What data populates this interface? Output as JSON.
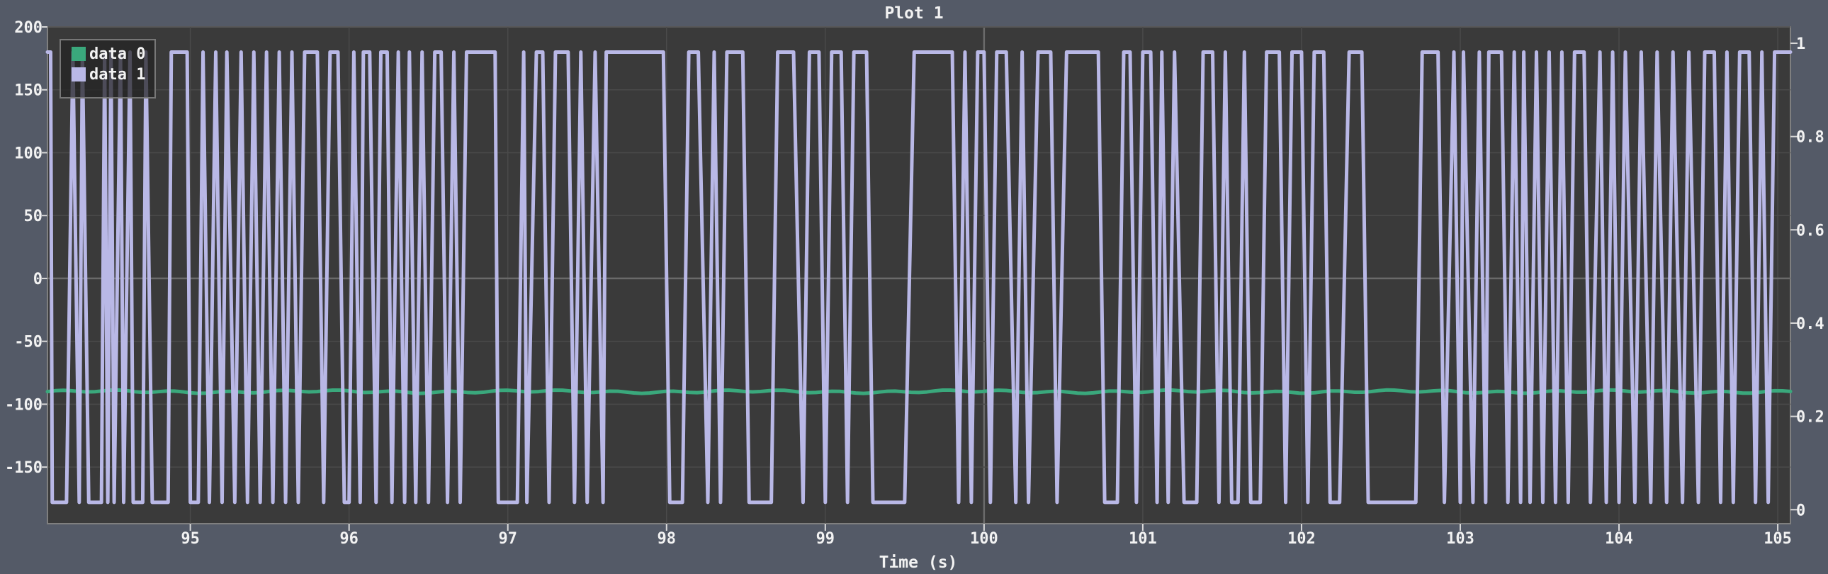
{
  "chart_data": {
    "type": "line",
    "title": "Plot 1",
    "xlabel": "Time (s)",
    "ylabel": "",
    "xlim": [
      94.1,
      105.08
    ],
    "ylim": [
      -195,
      200
    ],
    "y2lim": [
      -0.03,
      1.035
    ],
    "x_ticks": [
      "95",
      "96",
      "97",
      "98",
      "99",
      "100",
      "101",
      "102",
      "103",
      "104",
      "105"
    ],
    "y_ticks": [
      "200",
      "150",
      "100",
      "50",
      "0",
      "-50",
      "-100",
      "-150"
    ],
    "y2_ticks": [
      "1",
      "0.8",
      "0.6",
      "0.4",
      "0.2",
      "0"
    ],
    "grid": true,
    "legend_position": "top-left",
    "series": [
      {
        "name": "data 0",
        "color": "#3aa87c",
        "axis": "left",
        "values": "constant approximately -90 across the full range"
      },
      {
        "name": "data 1",
        "color": "#b9b8e6",
        "axis": "left",
        "segments": [
          [
            94.1,
            180
          ],
          [
            94.12,
            180
          ],
          [
            94.13,
            -178
          ],
          [
            94.22,
            -178
          ],
          [
            94.26,
            180
          ],
          [
            94.3,
            -178
          ],
          [
            94.32,
            180
          ],
          [
            94.36,
            -178
          ],
          [
            94.44,
            -178
          ],
          [
            94.46,
            180
          ],
          [
            94.48,
            -178
          ],
          [
            94.5,
            180
          ],
          [
            94.52,
            -178
          ],
          [
            94.56,
            180
          ],
          [
            94.58,
            -178
          ],
          [
            94.62,
            180
          ],
          [
            94.64,
            -178
          ],
          [
            94.7,
            -178
          ],
          [
            94.72,
            180
          ],
          [
            94.76,
            -178
          ],
          [
            94.86,
            -178
          ],
          [
            94.88,
            180
          ],
          [
            94.98,
            180
          ],
          [
            95.0,
            -178
          ],
          [
            95.05,
            -178
          ],
          [
            95.08,
            180
          ],
          [
            95.12,
            -178
          ],
          [
            95.16,
            180
          ],
          [
            95.2,
            -178
          ],
          [
            95.23,
            180
          ],
          [
            95.28,
            -178
          ],
          [
            95.32,
            180
          ],
          [
            95.36,
            -178
          ],
          [
            95.4,
            180
          ],
          [
            95.44,
            -178
          ],
          [
            95.48,
            180
          ],
          [
            95.52,
            -178
          ],
          [
            95.56,
            180
          ],
          [
            95.6,
            -178
          ],
          [
            95.64,
            180
          ],
          [
            95.68,
            -178
          ],
          [
            95.72,
            180
          ],
          [
            95.8,
            180
          ],
          [
            95.84,
            -178
          ],
          [
            95.88,
            180
          ],
          [
            95.93,
            180
          ],
          [
            95.97,
            -178
          ],
          [
            96.0,
            -178
          ],
          [
            96.03,
            180
          ],
          [
            96.07,
            -178
          ],
          [
            96.09,
            180
          ],
          [
            96.13,
            180
          ],
          [
            96.17,
            -178
          ],
          [
            96.2,
            180
          ],
          [
            96.24,
            180
          ],
          [
            96.27,
            -178
          ],
          [
            96.31,
            180
          ],
          [
            96.35,
            -178
          ],
          [
            96.38,
            180
          ],
          [
            96.42,
            -178
          ],
          [
            96.46,
            180
          ],
          [
            96.5,
            -178
          ],
          [
            96.54,
            180
          ],
          [
            96.58,
            180
          ],
          [
            96.62,
            -178
          ],
          [
            96.66,
            180
          ],
          [
            96.7,
            -178
          ],
          [
            96.74,
            180
          ],
          [
            96.86,
            180
          ],
          [
            96.92,
            180
          ],
          [
            96.94,
            -178
          ],
          [
            97.06,
            -178
          ],
          [
            97.1,
            180
          ],
          [
            97.12,
            -178
          ],
          [
            97.18,
            180
          ],
          [
            97.22,
            180
          ],
          [
            97.26,
            -178
          ],
          [
            97.3,
            180
          ],
          [
            97.38,
            180
          ],
          [
            97.42,
            -178
          ],
          [
            97.46,
            180
          ],
          [
            97.5,
            -178
          ],
          [
            97.55,
            180
          ],
          [
            97.6,
            -178
          ],
          [
            97.62,
            180
          ],
          [
            97.88,
            180
          ],
          [
            97.98,
            180
          ],
          [
            98.02,
            -178
          ],
          [
            98.1,
            -178
          ],
          [
            98.14,
            180
          ],
          [
            98.2,
            180
          ],
          [
            98.26,
            -178
          ],
          [
            98.3,
            180
          ],
          [
            98.34,
            -178
          ],
          [
            98.38,
            180
          ],
          [
            98.48,
            180
          ],
          [
            98.52,
            -178
          ],
          [
            98.66,
            -178
          ],
          [
            98.7,
            180
          ],
          [
            98.8,
            180
          ],
          [
            98.86,
            -178
          ],
          [
            98.9,
            180
          ],
          [
            98.96,
            180
          ],
          [
            99.0,
            -178
          ],
          [
            99.04,
            180
          ],
          [
            99.1,
            180
          ],
          [
            99.14,
            -178
          ],
          [
            99.18,
            180
          ],
          [
            99.26,
            180
          ],
          [
            99.3,
            -178
          ],
          [
            99.5,
            -178
          ],
          [
            99.56,
            180
          ],
          [
            99.8,
            180
          ],
          [
            99.84,
            -178
          ],
          [
            99.88,
            180
          ],
          [
            99.92,
            -178
          ],
          [
            99.96,
            180
          ],
          [
            100.0,
            180
          ],
          [
            100.04,
            -178
          ],
          [
            100.08,
            180
          ],
          [
            100.14,
            180
          ],
          [
            100.2,
            -178
          ],
          [
            100.24,
            180
          ],
          [
            100.28,
            -178
          ],
          [
            100.34,
            180
          ],
          [
            100.42,
            180
          ],
          [
            100.46,
            -178
          ],
          [
            100.52,
            180
          ],
          [
            100.72,
            180
          ],
          [
            100.76,
            -178
          ],
          [
            100.84,
            -178
          ],
          [
            100.88,
            180
          ],
          [
            100.92,
            180
          ],
          [
            100.96,
            -178
          ],
          [
            101.0,
            180
          ],
          [
            101.05,
            180
          ],
          [
            101.09,
            -178
          ],
          [
            101.12,
            180
          ],
          [
            101.16,
            -178
          ],
          [
            101.2,
            180
          ],
          [
            101.26,
            -178
          ],
          [
            101.34,
            -178
          ],
          [
            101.38,
            180
          ],
          [
            101.44,
            180
          ],
          [
            101.48,
            -178
          ],
          [
            101.52,
            180
          ],
          [
            101.56,
            -178
          ],
          [
            101.6,
            -178
          ],
          [
            101.64,
            180
          ],
          [
            101.68,
            -178
          ],
          [
            101.74,
            -178
          ],
          [
            101.78,
            180
          ],
          [
            101.86,
            180
          ],
          [
            101.9,
            -178
          ],
          [
            101.94,
            180
          ],
          [
            102.0,
            180
          ],
          [
            102.04,
            -178
          ],
          [
            102.08,
            180
          ],
          [
            102.14,
            180
          ],
          [
            102.18,
            -178
          ],
          [
            102.24,
            -178
          ],
          [
            102.3,
            180
          ],
          [
            102.38,
            180
          ],
          [
            102.42,
            -178
          ],
          [
            102.72,
            -178
          ],
          [
            102.76,
            180
          ],
          [
            102.86,
            180
          ],
          [
            102.9,
            -178
          ],
          [
            102.96,
            180
          ],
          [
            103.0,
            -178
          ],
          [
            103.02,
            180
          ],
          [
            103.08,
            -178
          ],
          [
            103.12,
            180
          ],
          [
            103.16,
            -178
          ],
          [
            103.18,
            180
          ],
          [
            103.26,
            180
          ],
          [
            103.3,
            -178
          ],
          [
            103.34,
            180
          ],
          [
            103.38,
            -178
          ],
          [
            103.4,
            180
          ],
          [
            103.44,
            -178
          ],
          [
            103.48,
            180
          ],
          [
            103.52,
            -178
          ],
          [
            103.56,
            180
          ],
          [
            103.6,
            -178
          ],
          [
            103.64,
            180
          ],
          [
            103.68,
            -178
          ],
          [
            103.72,
            180
          ],
          [
            103.78,
            180
          ],
          [
            103.82,
            -178
          ],
          [
            103.88,
            180
          ],
          [
            103.92,
            -178
          ],
          [
            103.96,
            180
          ],
          [
            104.0,
            -178
          ],
          [
            104.04,
            180
          ],
          [
            104.1,
            -178
          ],
          [
            104.14,
            180
          ],
          [
            104.2,
            -178
          ],
          [
            104.24,
            180
          ],
          [
            104.3,
            -178
          ],
          [
            104.34,
            180
          ],
          [
            104.4,
            -178
          ],
          [
            104.44,
            180
          ],
          [
            104.5,
            -178
          ],
          [
            104.54,
            180
          ],
          [
            104.6,
            180
          ],
          [
            104.64,
            -178
          ],
          [
            104.68,
            180
          ],
          [
            104.72,
            -178
          ],
          [
            104.76,
            180
          ],
          [
            104.82,
            180
          ],
          [
            104.86,
            -178
          ],
          [
            104.9,
            180
          ],
          [
            104.94,
            -178
          ],
          [
            104.98,
            180
          ],
          [
            105.08,
            180
          ]
        ]
      }
    ]
  },
  "legend": {
    "items": [
      {
        "label": "data 0",
        "color": "#3aa87c"
      },
      {
        "label": "data 1",
        "color": "#b9b8e6"
      }
    ]
  },
  "colors": {
    "page_bg": "#545a67",
    "plot_bg": "#3a3a3a",
    "plot_border": "#7f7f7f",
    "grid": "#4a4a4a",
    "zero_line": "#6a6a6a",
    "text": "#f2f2f2",
    "axis": "#d9d9d9"
  }
}
